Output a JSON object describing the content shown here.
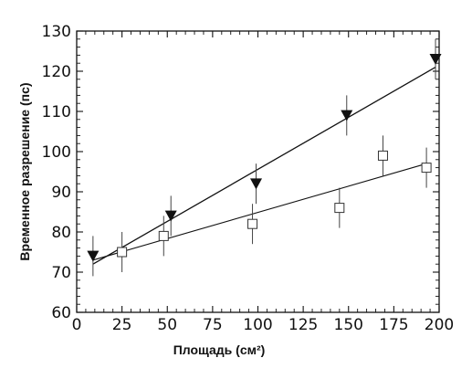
{
  "chart_data": {
    "type": "scatter",
    "title": "",
    "xlabel": "Площадь (см²)",
    "ylabel": "Временное разрешение (пс)",
    "xlim": [
      0,
      200
    ],
    "ylim": [
      60,
      130
    ],
    "xticks": [
      0,
      25,
      50,
      75,
      100,
      125,
      150,
      175,
      200
    ],
    "yticks": [
      60,
      70,
      80,
      90,
      100,
      110,
      120,
      130
    ],
    "grid": false,
    "legend": "none",
    "series": [
      {
        "marker": "filled-triangle-down",
        "color": "#111111",
        "points": [
          {
            "x": 9,
            "y": 74,
            "err": 5
          },
          {
            "x": 52,
            "y": 84,
            "err": 5
          },
          {
            "x": 99,
            "y": 92,
            "err": 5
          },
          {
            "x": 149,
            "y": 109,
            "err": 5
          },
          {
            "x": 198,
            "y": 123,
            "err": 5
          }
        ],
        "fit": {
          "x": [
            9,
            198
          ],
          "y": [
            72,
            121
          ]
        }
      },
      {
        "marker": "open-square",
        "color": "#111111",
        "points": [
          {
            "x": 25,
            "y": 75,
            "err": 5
          },
          {
            "x": 48,
            "y": 79,
            "err": 5
          },
          {
            "x": 97,
            "y": 82,
            "err": 5
          },
          {
            "x": 145,
            "y": 86,
            "err": 5
          },
          {
            "x": 169,
            "y": 99,
            "err": 5
          },
          {
            "x": 193,
            "y": 96,
            "err": 5
          }
        ],
        "fit": {
          "x": [
            9,
            193
          ],
          "y": [
            73,
            97
          ]
        }
      }
    ]
  }
}
